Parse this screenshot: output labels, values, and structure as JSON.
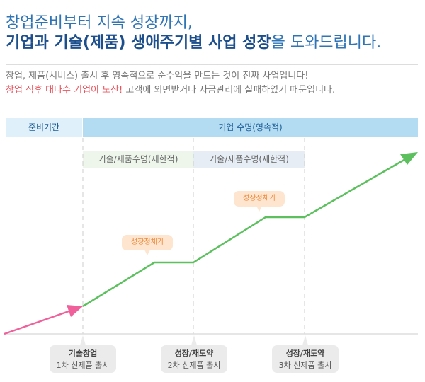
{
  "title": {
    "line1": "창업준비부터 지속 성장까지,",
    "line2_bold": "기업과 기술(제품) 생애주기별 사업 성장",
    "line2_rest": "을 도와드립니다."
  },
  "subtitle": {
    "line1": "창업, 제품(서비스) 출시 후 영속적으로 순수익을 만드는 것이 진짜 사업입니다!",
    "line2_highlight": "창업 직후 대다수 기업이 도산!",
    "line2_rest": " 고객에 외면받거나 자금관리에 실패하였기 때문입니다."
  },
  "header": {
    "prep": "준비기간",
    "life": "기업 수명(영속적)"
  },
  "sub_periods": [
    "기술/제품수명(제한적)",
    "기술/제품수명(제한적)"
  ],
  "callouts": [
    "성장정체기",
    "성장정체기"
  ],
  "milestones": [
    {
      "title": "기술창업",
      "desc": "1차 신제품 출시"
    },
    {
      "title": "성장/재도약",
      "desc": "2차 신제품 출시"
    },
    {
      "title": "성장/재도약",
      "desc": "3차 신제품 출시"
    }
  ],
  "colors": {
    "title": "#1c4f8c",
    "highlight": "#e8545d",
    "prep_arrow": "#f0609a",
    "growth_line": "#5cc05e",
    "callout": "#fde5cf"
  }
}
